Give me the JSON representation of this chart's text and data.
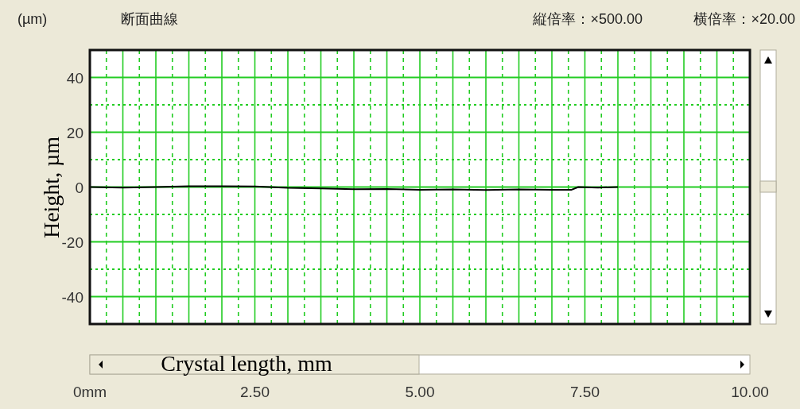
{
  "chart_data": {
    "type": "line",
    "title": "断面曲線",
    "annotations": [
      "(µm)",
      "縦倍率：×500.00",
      "横倍率：×20.00"
    ],
    "xlabel": "Crystal length, mm",
    "ylabel": "Height, µm",
    "x": [
      0,
      0.5,
      1,
      1.5,
      2,
      2.5,
      3,
      3.5,
      4,
      4.5,
      5,
      5.5,
      6,
      6.5,
      7,
      7.3,
      7.4,
      7.7,
      8.0
    ],
    "values": [
      0,
      -0.2,
      0,
      0.3,
      0.3,
      0.2,
      -0.3,
      -0.5,
      -0.8,
      -0.7,
      -1,
      -0.9,
      -1.1,
      -0.9,
      -1,
      -1,
      0,
      -0.2,
      0
    ],
    "color": "#000000",
    "xlim": [
      0,
      10
    ],
    "ylim": [
      -50,
      50
    ],
    "xticks": [
      {
        "value": 0,
        "label": "0mm"
      },
      {
        "value": 0.25,
        "label": null
      },
      {
        "value": 0.5,
        "label": null
      },
      {
        "value": 0.75,
        "label": null
      },
      {
        "value": 1,
        "label": null
      },
      {
        "value": 1.25,
        "label": null
      },
      {
        "value": 1.5,
        "label": null
      },
      {
        "value": 1.75,
        "label": null
      },
      {
        "value": 2,
        "label": null
      },
      {
        "value": 2.25,
        "label": null
      },
      {
        "value": 2.5,
        "label": "2.50"
      },
      {
        "value": 2.75,
        "label": null
      },
      {
        "value": 3,
        "label": null
      },
      {
        "value": 3.25,
        "label": null
      },
      {
        "value": 3.5,
        "label": null
      },
      {
        "value": 3.75,
        "label": null
      },
      {
        "value": 4,
        "label": null
      },
      {
        "value": 4.25,
        "label": null
      },
      {
        "value": 4.5,
        "label": null
      },
      {
        "value": 4.75,
        "label": null
      },
      {
        "value": 5,
        "label": "5.00"
      },
      {
        "value": 5.25,
        "label": null
      },
      {
        "value": 5.5,
        "label": null
      },
      {
        "value": 5.75,
        "label": null
      },
      {
        "value": 6,
        "label": null
      },
      {
        "value": 6.25,
        "label": null
      },
      {
        "value": 6.5,
        "label": null
      },
      {
        "value": 6.75,
        "label": null
      },
      {
        "value": 7,
        "label": null
      },
      {
        "value": 7.25,
        "label": null
      },
      {
        "value": 7.5,
        "label": "7.50"
      },
      {
        "value": 7.75,
        "label": null
      },
      {
        "value": 8,
        "label": null
      },
      {
        "value": 8.25,
        "label": null
      },
      {
        "value": 8.5,
        "label": null
      },
      {
        "value": 8.75,
        "label": null
      },
      {
        "value": 9,
        "label": null
      },
      {
        "value": 9.25,
        "label": null
      },
      {
        "value": 9.5,
        "label": null
      },
      {
        "value": 9.75,
        "label": null
      },
      {
        "value": 10,
        "label": "10.00"
      }
    ],
    "yticks": [
      -40,
      {
        "value": -30,
        "label": null
      },
      -20,
      {
        "value": -10,
        "label": null
      },
      0,
      {
        "value": 10,
        "label": null
      },
      20,
      {
        "value": 30,
        "label": null
      },
      40
    ],
    "grid": true
  }
}
